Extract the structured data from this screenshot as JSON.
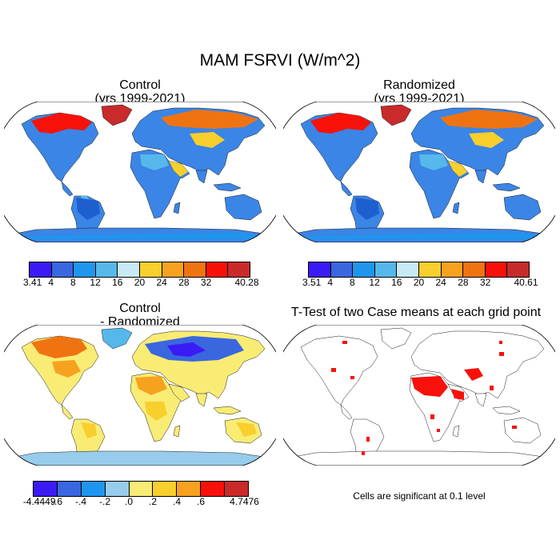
{
  "main_title": "MAM FSRVI (W/m^2)",
  "panels": {
    "control": {
      "title_line1": "Control",
      "title_line2": "(yrs 1999-2021)"
    },
    "randomized": {
      "title_line1": "Randomized",
      "title_line2": "(yrs 1999-2021)"
    },
    "difference": {
      "title_line1": "Control",
      "title_line2": "- Randomized"
    },
    "ttest": {
      "title_line1": "T-Test of two Case means at each grid point"
    }
  },
  "colorbars": {
    "control": {
      "colors": [
        "#3b1bf5",
        "#3a66e0",
        "#1e96ee",
        "#56b8ea",
        "#c8e9f6",
        "#f8cf2c",
        "#f7a21e",
        "#f07312",
        "#f8110a",
        "#c92a2a"
      ],
      "labels": [
        "3.41",
        "4",
        "8",
        "12",
        "16",
        "20",
        "24",
        "28",
        "32",
        "40.28"
      ]
    },
    "randomized": {
      "colors": [
        "#3b1bf5",
        "#3a66e0",
        "#1e96ee",
        "#56b8ea",
        "#c8e9f6",
        "#f8cf2c",
        "#f7a21e",
        "#f07312",
        "#f8110a",
        "#c92a2a"
      ],
      "labels": [
        "3.51",
        "4",
        "8",
        "12",
        "16",
        "20",
        "24",
        "28",
        "32",
        "40.61"
      ]
    },
    "difference": {
      "colors": [
        "#3b1bf5",
        "#3a66e0",
        "#1e96ee",
        "#97ccec",
        "#f9ec74",
        "#f8cf2c",
        "#f7a21e",
        "#f8110a",
        "#c92a2a"
      ],
      "labels": [
        "-4.4449",
        "-.6",
        "-.4",
        "-.2",
        ".0",
        ".2",
        ".4",
        ".6",
        "4.7476"
      ]
    }
  },
  "ttest_note": "Cells are significant at 0.1 level"
}
